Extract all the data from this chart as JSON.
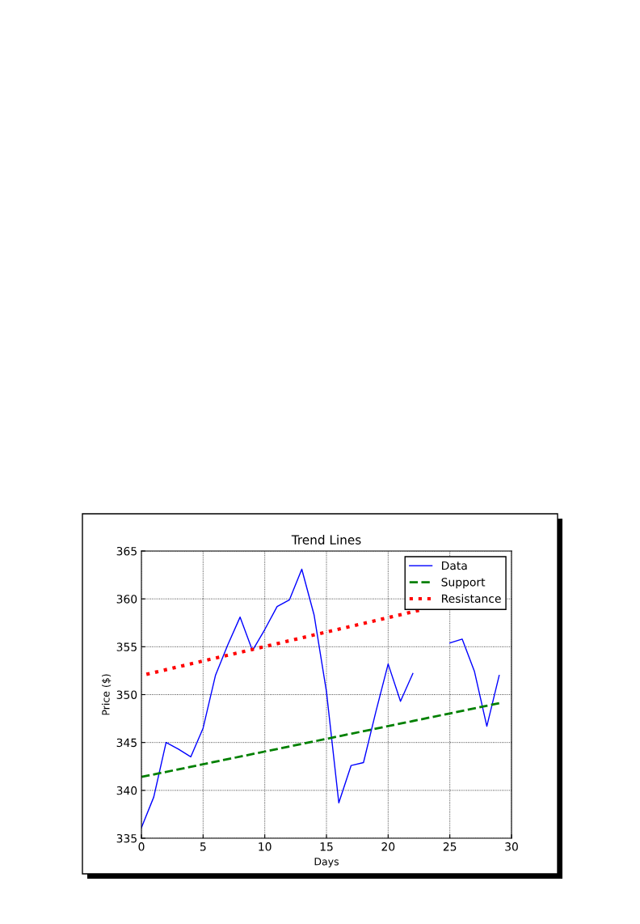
{
  "chart_data": {
    "type": "line",
    "title": "Trend Lines",
    "xlabel": "Days",
    "ylabel": "Price ($)",
    "xlim": [
      0,
      30
    ],
    "xticks": [
      0,
      5,
      10,
      15,
      20,
      25,
      30
    ],
    "ylim": [
      335,
      365
    ],
    "yticks": [
      335,
      340,
      345,
      350,
      355,
      360,
      365
    ],
    "grid": true,
    "legend": "top right",
    "series": [
      {
        "name": "Data",
        "color": "#0000ff",
        "line_style": "solid",
        "x": [
          0,
          1,
          2,
          3,
          4,
          5,
          6,
          7,
          8,
          9,
          10,
          11,
          12,
          13,
          14,
          15,
          16,
          17,
          18,
          19,
          20,
          21,
          22,
          23,
          24,
          25,
          26,
          27,
          28,
          29
        ],
        "values": [
          336.1,
          339.3,
          345.0,
          344.3,
          343.5,
          346.5,
          352.0,
          355.2,
          358.1,
          354.6,
          356.8,
          359.2,
          359.9,
          363.1,
          358.3,
          350.3,
          338.7,
          342.6,
          342.9,
          348.2,
          353.2,
          349.3,
          352.2,
          null,
          null,
          355.4,
          355.8,
          352.4,
          346.7,
          352.0
        ]
      },
      {
        "name": "Support",
        "color": "#008000",
        "line_style": "dashed",
        "x": [
          0,
          29
        ],
        "values": [
          341.4,
          349.1
        ]
      },
      {
        "name": "Resistance",
        "color": "#ff0000",
        "line_style": "dotted",
        "x": [
          0,
          22.5
        ],
        "values": [
          352.0,
          358.8
        ]
      }
    ]
  }
}
